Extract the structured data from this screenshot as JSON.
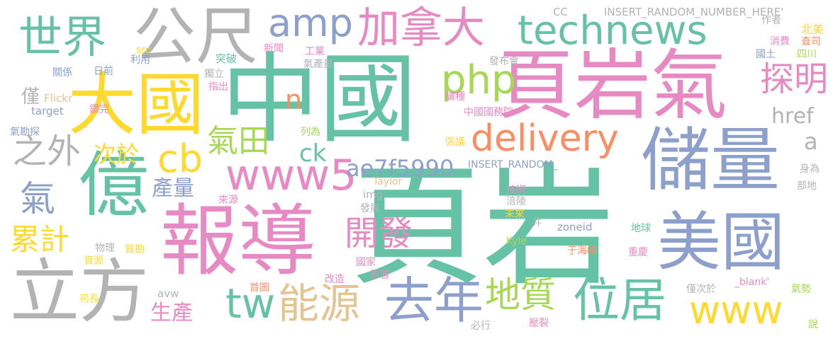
{
  "colors": {
    "green": "#66c2a5",
    "pink": "#e78ac3",
    "blue": "#8da0cb",
    "gray": "#b3b3b3",
    "yellow": "#ffd92f",
    "lime": "#a6d854",
    "orange": "#fc8d62",
    "tan": "#e5c494"
  },
  "words": [
    {
      "text": "頁岩",
      "color": "green"
    },
    {
      "text": "中國",
      "color": "green"
    },
    {
      "text": "頁岩氣",
      "color": "pink"
    },
    {
      "text": "報導",
      "color": "pink"
    },
    {
      "text": "儲量",
      "color": "blue"
    },
    {
      "text": "美國",
      "color": "blue"
    },
    {
      "text": "大國",
      "color": "yellow"
    },
    {
      "text": "億",
      "color": "green"
    },
    {
      "text": "立方",
      "color": "gray"
    },
    {
      "text": "公尺",
      "color": "gray"
    },
    {
      "text": "世界",
      "color": "green"
    },
    {
      "text": "去年",
      "color": "blue"
    },
    {
      "text": "位居",
      "color": "green"
    },
    {
      "text": "加拿大",
      "color": "pink"
    },
    {
      "text": "technews",
      "color": "green"
    },
    {
      "text": "amp",
      "color": "blue"
    },
    {
      "text": "www5",
      "color": "pink"
    },
    {
      "text": "delivery",
      "color": "orange"
    },
    {
      "text": "php",
      "color": "lime"
    },
    {
      "text": "www",
      "color": "yellow"
    },
    {
      "text": "tw",
      "color": "green"
    },
    {
      "text": "能源",
      "color": "tan"
    },
    {
      "text": "cb",
      "color": "yellow"
    },
    {
      "text": "地質",
      "color": "lime"
    },
    {
      "text": "探明",
      "color": "pink"
    },
    {
      "text": "開發",
      "color": "pink"
    },
    {
      "text": "之外",
      "color": "gray"
    },
    {
      "text": "氣",
      "color": "blue"
    },
    {
      "text": "氣田",
      "color": "lime"
    },
    {
      "text": "累計",
      "color": "yellow"
    },
    {
      "text": "生產",
      "color": "pink"
    },
    {
      "text": "ae7f5990",
      "color": "blue"
    },
    {
      "text": "href",
      "color": "gray"
    },
    {
      "text": "ck",
      "color": "green"
    },
    {
      "text": "次於",
      "color": "yellow"
    },
    {
      "text": "產量",
      "color": "blue"
    },
    {
      "text": "n",
      "color": "orange"
    },
    {
      "text": "僅",
      "color": "gray"
    },
    {
      "text": "a",
      "color": "gray"
    },
    {
      "text": "INSERT_RANDOM_NUMBER_HERE'",
      "color": "gray"
    },
    {
      "text": "INSERT_RANDOM_",
      "color": "blue"
    },
    {
      "text": "CC",
      "color": "gray"
    },
    {
      "text": "作者",
      "color": "gray"
    },
    {
      "text": "北美",
      "color": "yellow"
    },
    {
      "text": "消費",
      "color": "pink"
    },
    {
      "text": "查司",
      "color": "orange"
    },
    {
      "text": "國土",
      "color": "blue"
    },
    {
      "text": "四川",
      "color": "lime"
    },
    {
      "text": "新聞",
      "color": "pink"
    },
    {
      "text": "工業",
      "color": "pink"
    },
    {
      "text": "氣產量",
      "color": "gray"
    },
    {
      "text": "發布會",
      "color": "gray"
    },
    {
      "text": "突破",
      "color": "green"
    },
    {
      "text": "獨立",
      "color": "gray"
    },
    {
      "text": "src",
      "color": "yellow"
    },
    {
      "text": "利用",
      "color": "blue"
    },
    {
      "text": "日前",
      "color": "blue"
    },
    {
      "text": "關係",
      "color": "blue"
    },
    {
      "text": "指出",
      "color": "pink"
    },
    {
      "text": "Flickr",
      "color": "tan"
    },
    {
      "text": "target",
      "color": "blue"
    },
    {
      "text": "鑽完",
      "color": "pink"
    },
    {
      "text": "礦種",
      "color": "pink"
    },
    {
      "text": "中國國務院",
      "color": "pink"
    },
    {
      "text": "氣勘探",
      "color": "blue"
    },
    {
      "text": "列為",
      "color": "lime"
    },
    {
      "text": "張議",
      "color": "yellow"
    },
    {
      "text": "身為",
      "color": "gray"
    },
    {
      "text": "部地",
      "color": "gray"
    },
    {
      "text": "Taylor",
      "color": "tan"
    },
    {
      "text": "img",
      "color": "gray"
    },
    {
      "text": "來源",
      "color": "pink"
    },
    {
      "text": "技術",
      "color": "pink"
    },
    {
      "text": "涪陵",
      "color": "gray"
    },
    {
      "text": "發展",
      "color": "gray"
    },
    {
      "text": "未來",
      "color": "yellow"
    },
    {
      "text": "井",
      "color": "gray"
    },
    {
      "text": "zoneid",
      "color": "blue"
    },
    {
      "text": "地球",
      "color": "green"
    },
    {
      "text": "Kyle",
      "color": "lime"
    },
    {
      "text": "物理",
      "color": "gray"
    },
    {
      "text": "質勘",
      "color": "yellow"
    },
    {
      "text": "資源",
      "color": "yellow"
    },
    {
      "text": "于海峰",
      "color": "orange"
    },
    {
      "text": "國家",
      "color": "pink"
    },
    {
      "text": "重慶",
      "color": "pink"
    },
    {
      "text": "影響",
      "color": "pink"
    },
    {
      "text": "改造",
      "color": "pink"
    },
    {
      "text": "首圖",
      "color": "orange"
    },
    {
      "text": "avw",
      "color": "gray"
    },
    {
      "text": "司長",
      "color": "yellow"
    },
    {
      "text": "_blank'",
      "color": "pink"
    },
    {
      "text": "僅次於",
      "color": "gray"
    },
    {
      "text": "氣勢",
      "color": "lime"
    },
    {
      "text": "必行",
      "color": "gray"
    },
    {
      "text": "壓裂",
      "color": "pink"
    },
    {
      "text": "說",
      "color": "lime"
    }
  ]
}
